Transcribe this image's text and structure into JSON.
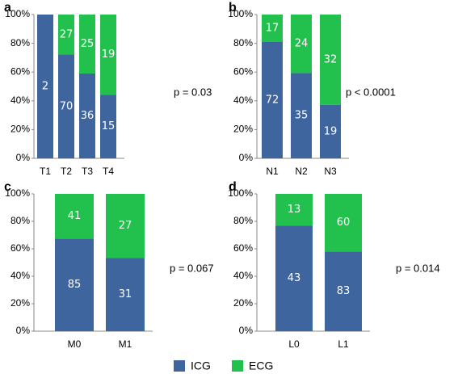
{
  "chart_data": [
    {
      "type": "bar",
      "stacking": "percent",
      "panel": "a",
      "categories": [
        "T1",
        "T2",
        "T3",
        "T4"
      ],
      "series": [
        {
          "color": "#3f659f",
          "values": [
            2,
            70,
            36,
            15
          ]
        },
        {
          "color": "#22c14d",
          "values": [
            0,
            27,
            25,
            19
          ]
        }
      ],
      "ylim": [
        0,
        100
      ],
      "yticks": [
        {
          "value": 0,
          "label": "0%"
        },
        {
          "value": 20,
          "label": "20%"
        },
        {
          "value": 40,
          "label": "40%"
        },
        {
          "value": 60,
          "label": "60%"
        },
        {
          "value": 80,
          "label": "80%"
        },
        {
          "value": 100,
          "label": "100%"
        }
      ],
      "annotation": "p = 0.03"
    },
    {
      "type": "bar",
      "stacking": "percent",
      "panel": "b",
      "categories": [
        "N1",
        "N2",
        "N3"
      ],
      "series": [
        {
          "color": "#3f659f",
          "values": [
            72,
            35,
            19
          ]
        },
        {
          "color": "#22c14d",
          "values": [
            17,
            24,
            32
          ]
        }
      ],
      "ylim": [
        0,
        100
      ],
      "yticks": [
        {
          "value": 0,
          "label": "0%"
        },
        {
          "value": 20,
          "label": "20%"
        },
        {
          "value": 40,
          "label": "40%"
        },
        {
          "value": 60,
          "label": "60%"
        },
        {
          "value": 80,
          "label": "80%"
        },
        {
          "value": 100,
          "label": "100%"
        }
      ],
      "annotation": "p < 0.0001"
    },
    {
      "type": "bar",
      "stacking": "percent",
      "panel": "c",
      "categories": [
        "M0",
        "M1"
      ],
      "series": [
        {
          "color": "#3f659f",
          "values": [
            85,
            31
          ]
        },
        {
          "color": "#22c14d",
          "values": [
            41,
            27
          ]
        }
      ],
      "ylim": [
        0,
        100
      ],
      "yticks": [
        {
          "value": 0,
          "label": "0%"
        },
        {
          "value": 20,
          "label": "20%"
        },
        {
          "value": 40,
          "label": "40%"
        },
        {
          "value": 60,
          "label": "60%"
        },
        {
          "value": 80,
          "label": "80%"
        },
        {
          "value": 100,
          "label": "100%"
        }
      ],
      "annotation": "p = 0.067"
    },
    {
      "type": "bar",
      "stacking": "percent",
      "panel": "d",
      "categories": [
        "L0",
        "L1"
      ],
      "series": [
        {
          "color": "#3f659f",
          "values": [
            43,
            83
          ]
        },
        {
          "color": "#22c14d",
          "values": [
            13,
            60
          ]
        }
      ],
      "ylim": [
        0,
        100
      ],
      "yticks": [
        {
          "value": 0,
          "label": "0%"
        },
        {
          "value": 20,
          "label": "20%"
        },
        {
          "value": 40,
          "label": "40%"
        },
        {
          "value": 60,
          "label": "60%"
        },
        {
          "value": 80,
          "label": "80%"
        },
        {
          "value": 100,
          "label": "100%"
        }
      ],
      "annotation": "p = 0.014"
    }
  ],
  "legend": [
    {
      "name": "ICG",
      "color": "#3f659f"
    },
    {
      "name": "ECG",
      "color": "#22c14d"
    }
  ]
}
